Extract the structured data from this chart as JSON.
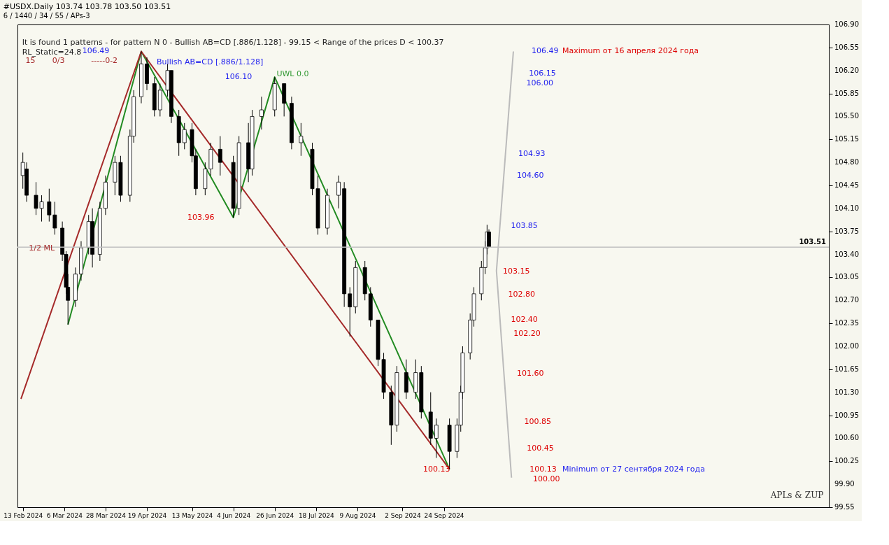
{
  "chart_data": {
    "type": "candlestick",
    "title": "#USDX.Daily  103.74 103.78 103.50 103.51",
    "subtitle": "6 / 1440 / 34 / 55 / APs-3",
    "x": [
      "2024-02-13",
      "2024-02-15",
      "2024-02-20",
      "2024-02-23",
      "2024-02-27",
      "2024-03-01",
      "2024-03-05",
      "2024-03-07",
      "2024-03-08",
      "2024-03-12",
      "2024-03-15",
      "2024-03-19",
      "2024-03-21",
      "2024-03-25",
      "2024-03-28",
      "2024-04-02",
      "2024-04-05",
      "2024-04-10",
      "2024-04-12",
      "2024-04-16",
      "2024-04-19",
      "2024-04-23",
      "2024-04-26",
      "2024-04-30",
      "2024-05-02",
      "2024-05-06",
      "2024-05-09",
      "2024-05-13",
      "2024-05-15",
      "2024-05-20",
      "2024-05-23",
      "2024-05-28",
      "2024-06-04",
      "2024-06-07",
      "2024-06-12",
      "2024-06-14",
      "2024-06-19",
      "2024-06-26",
      "2024-07-01",
      "2024-07-05",
      "2024-07-10",
      "2024-07-16",
      "2024-07-19",
      "2024-07-24",
      "2024-07-30",
      "2024-08-02",
      "2024-08-05",
      "2024-08-08",
      "2024-08-13",
      "2024-08-16",
      "2024-08-20",
      "2024-08-23",
      "2024-08-27",
      "2024-08-30",
      "2024-09-04",
      "2024-09-09",
      "2024-09-12",
      "2024-09-17",
      "2024-09-20",
      "2024-09-27",
      "2024-10-01",
      "2024-10-03",
      "2024-10-04",
      "2024-10-08",
      "2024-10-10",
      "2024-10-14",
      "2024-10-16",
      "2024-10-17",
      "2024-10-18"
    ],
    "ohlc": [
      [
        104.6,
        104.95,
        104.4,
        104.8
      ],
      [
        104.7,
        104.8,
        104.2,
        104.3
      ],
      [
        104.3,
        104.5,
        104.0,
        104.1
      ],
      [
        104.1,
        104.3,
        103.9,
        104.2
      ],
      [
        104.2,
        104.4,
        103.9,
        104.0
      ],
      [
        104.0,
        104.2,
        103.7,
        103.8
      ],
      [
        103.8,
        103.9,
        103.3,
        103.4
      ],
      [
        103.4,
        103.45,
        102.8,
        102.9
      ],
      [
        102.9,
        103.1,
        102.33,
        102.7
      ],
      [
        102.7,
        103.2,
        102.6,
        103.1
      ],
      [
        103.1,
        103.6,
        103.0,
        103.5
      ],
      [
        103.5,
        104.0,
        103.4,
        103.9
      ],
      [
        103.9,
        104.1,
        103.2,
        103.4
      ],
      [
        103.4,
        104.2,
        103.3,
        104.1
      ],
      [
        104.1,
        104.6,
        104.0,
        104.5
      ],
      [
        104.5,
        104.9,
        104.3,
        104.8
      ],
      [
        104.8,
        104.9,
        104.2,
        104.3
      ],
      [
        104.3,
        105.3,
        104.2,
        105.2
      ],
      [
        105.2,
        105.9,
        105.1,
        105.8
      ],
      [
        105.8,
        106.49,
        105.7,
        106.3
      ],
      [
        106.3,
        106.4,
        105.9,
        106.0
      ],
      [
        106.0,
        106.1,
        105.5,
        105.6
      ],
      [
        105.6,
        106.0,
        105.5,
        105.9
      ],
      [
        105.9,
        106.3,
        105.8,
        106.2
      ],
      [
        106.2,
        106.2,
        105.4,
        105.5
      ],
      [
        105.5,
        105.6,
        104.9,
        105.1
      ],
      [
        105.1,
        105.4,
        105.0,
        105.3
      ],
      [
        105.3,
        105.4,
        104.8,
        104.9
      ],
      [
        104.9,
        105.0,
        104.3,
        104.4
      ],
      [
        104.4,
        104.8,
        104.3,
        104.7
      ],
      [
        104.7,
        105.1,
        104.6,
        105.0
      ],
      [
        105.0,
        105.2,
        104.6,
        104.8
      ],
      [
        104.8,
        104.9,
        103.96,
        104.1
      ],
      [
        104.1,
        105.2,
        104.0,
        105.1
      ],
      [
        105.1,
        105.4,
        104.5,
        104.7
      ],
      [
        104.7,
        105.6,
        104.6,
        105.5
      ],
      [
        105.5,
        105.8,
        105.3,
        105.6
      ],
      [
        105.6,
        106.1,
        105.5,
        106.0
      ],
      [
        106.0,
        106.0,
        105.5,
        105.7
      ],
      [
        105.7,
        105.8,
        105.0,
        105.1
      ],
      [
        105.1,
        105.4,
        104.9,
        105.2
      ],
      [
        105.0,
        105.1,
        104.3,
        104.4
      ],
      [
        104.4,
        104.6,
        103.7,
        103.8
      ],
      [
        103.8,
        104.4,
        103.7,
        104.3
      ],
      [
        104.3,
        104.6,
        104.1,
        104.5
      ],
      [
        104.4,
        104.5,
        102.6,
        102.8
      ],
      [
        102.8,
        102.9,
        102.15,
        102.6
      ],
      [
        102.6,
        103.3,
        102.5,
        103.2
      ],
      [
        103.2,
        103.3,
        102.7,
        102.8
      ],
      [
        102.8,
        102.9,
        102.3,
        102.4
      ],
      [
        102.4,
        102.4,
        101.7,
        101.8
      ],
      [
        101.8,
        101.9,
        101.2,
        101.3
      ],
      [
        101.3,
        101.4,
        100.5,
        100.8
      ],
      [
        100.8,
        101.7,
        100.7,
        101.6
      ],
      [
        101.6,
        101.8,
        101.2,
        101.3
      ],
      [
        101.3,
        101.8,
        101.2,
        101.6
      ],
      [
        101.6,
        101.7,
        100.9,
        101.0
      ],
      [
        101.0,
        101.3,
        100.5,
        100.6
      ],
      [
        100.6,
        100.9,
        100.3,
        100.8
      ],
      [
        100.8,
        100.9,
        100.13,
        100.4
      ],
      [
        100.4,
        100.9,
        100.3,
        100.8
      ],
      [
        100.8,
        101.4,
        100.7,
        101.3
      ],
      [
        101.3,
        102.0,
        101.2,
        101.9
      ],
      [
        101.9,
        102.5,
        101.8,
        102.4
      ],
      [
        102.4,
        102.9,
        102.3,
        102.8
      ],
      [
        102.8,
        103.3,
        102.7,
        103.2
      ],
      [
        103.2,
        103.6,
        103.1,
        103.5
      ],
      [
        103.5,
        103.85,
        103.4,
        103.74
      ],
      [
        103.74,
        103.78,
        103.5,
        103.51
      ]
    ],
    "series": [
      {
        "type": "line",
        "color": "#228b22",
        "x": [
          "2024-03-08",
          "2024-04-16",
          "2024-06-04",
          "2024-06-26",
          "2024-09-27"
        ],
        "values": [
          102.33,
          106.49,
          103.96,
          106.1,
          100.13
        ]
      },
      {
        "type": "line",
        "color": "#a52a2a",
        "x": [
          "2024-02-12",
          "2024-04-16",
          "2024-09-27"
        ],
        "values": [
          101.2,
          106.49,
          100.13
        ]
      },
      {
        "type": "line",
        "color": "#bbbbbb",
        "x": [
          "2024-10-30",
          "2024-10-22",
          "2024-10-31"
        ],
        "values": [
          100.0,
          103.15,
          106.49
        ]
      }
    ],
    "xlim": [
      "2024-02-12",
      "2025-04-15"
    ],
    "xticks": [
      {
        "value": "2024-02-13",
        "label": "13 Feb 2024"
      },
      {
        "value": "2024-03-06",
        "label": "6 Mar 2024"
      },
      {
        "value": "2024-03-28",
        "label": "28 Mar 2024"
      },
      {
        "value": "2024-04-19",
        "label": "19 Apr 2024"
      },
      {
        "value": "2024-05-13",
        "label": "13 May 2024"
      },
      {
        "value": "2024-06-04",
        "label": "4 Jun 2024"
      },
      {
        "value": "2024-06-26",
        "label": "26 Jun 2024"
      },
      {
        "value": "2024-07-18",
        "label": "18 Jul 2024"
      },
      {
        "value": "2024-08-09",
        "label": "9 Aug 2024"
      },
      {
        "value": "2024-09-02",
        "label": "2 Sep 2024"
      },
      {
        "value": "2024-09-24",
        "label": "24 Sep 2024"
      }
    ],
    "ylim": [
      99.55,
      106.9
    ],
    "yticks": [
      99.55,
      {
        "value": 99.9,
        "label": "99.90"
      },
      100.25,
      {
        "value": 100.6,
        "label": "100.60"
      },
      100.95,
      {
        "value": 101.3,
        "label": "101.30"
      },
      101.65,
      {
        "value": 102.0,
        "label": "102.00"
      },
      102.35,
      {
        "value": 102.7,
        "label": "102.70"
      },
      103.05,
      {
        "value": 103.4,
        "label": "103.40"
      },
      103.75,
      {
        "value": 104.1,
        "label": "104.10"
      },
      104.45,
      {
        "value": 104.8,
        "label": "104.80"
      },
      105.15,
      {
        "value": 105.5,
        "label": "105.50"
      },
      105.85,
      {
        "value": 106.2,
        "label": "106.20"
      },
      106.55,
      {
        "value": 106.9,
        "label": "106.90"
      }
    ],
    "ref_lines": [
      {
        "axis": "y",
        "value": 103.51,
        "label": "103.51",
        "color": "#c0c0c0"
      }
    ],
    "grid": false,
    "annotations": [
      "It is found 1 patterns  -  for pattern N 0 - Bullish AB=CD [.886/1.128] - 99.15 < Range of the prices D < 100.37",
      "RL_Static=24.8",
      "15",
      "0/3",
      "-----0-2",
      "APLs & ZUP",
      "Bullish AB=CD [.886/1.128]",
      "1/2 ML",
      "UWL 0.0",
      "106.49",
      "106.10",
      "103.96",
      "100.13",
      "106.49",
      "Maximum от 16 апреля 2024 года",
      "106.15",
      "106.00",
      "104.93",
      "104.60",
      "103.85",
      "103.15",
      "102.80",
      "102.40",
      "102.20",
      "101.60",
      "100.85",
      "100.45",
      "100.13",
      "Minimum от 27 сентября 2024 года",
      "100.00"
    ]
  }
}
